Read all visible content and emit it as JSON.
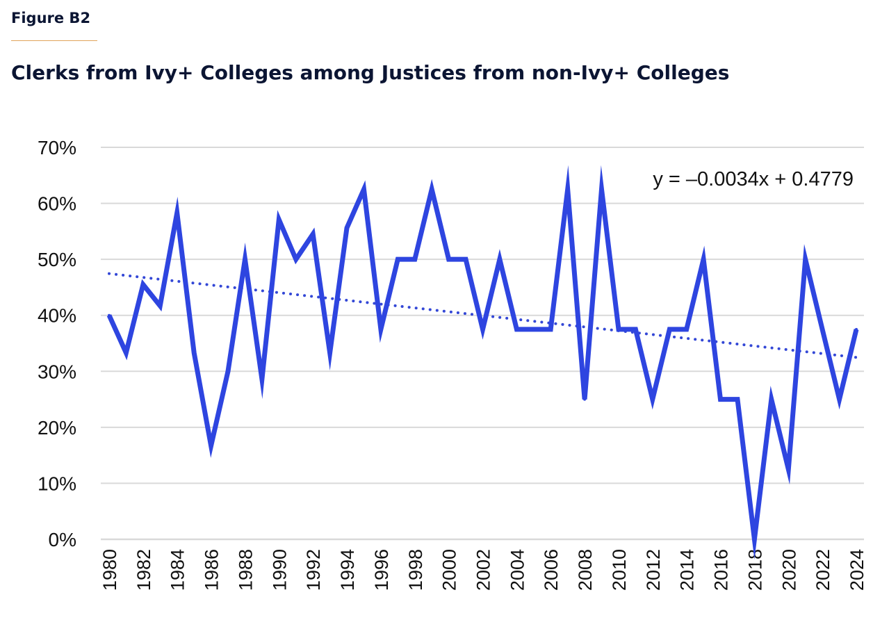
{
  "figure_label": "Figure B2",
  "colors": {
    "series": "#2e45e0",
    "trend": "#3347d6",
    "grid": "#d9d9d9",
    "axis": "#d9d9d9",
    "title": "#0b1533",
    "figure_rule": "#e0a45a"
  },
  "chart_data": {
    "type": "line",
    "title": "Clerks from Ivy+ Colleges among Justices from non-Ivy+ Colleges",
    "xlabel": "",
    "ylabel": "",
    "x": [
      1980,
      1981,
      1982,
      1983,
      1984,
      1985,
      1986,
      1987,
      1988,
      1989,
      1990,
      1991,
      1992,
      1993,
      1994,
      1995,
      1996,
      1997,
      1998,
      1999,
      2000,
      2001,
      2002,
      2003,
      2004,
      2005,
      2006,
      2007,
      2008,
      2009,
      2010,
      2011,
      2012,
      2013,
      2014,
      2015,
      2016,
      2017,
      2018,
      2019,
      2020,
      2021,
      2022,
      2023,
      2024
    ],
    "series": [
      {
        "values": [
          0.4,
          0.333,
          0.455,
          0.417,
          0.583,
          0.333,
          0.167,
          0.3,
          0.5,
          0.286,
          0.571,
          0.5,
          0.545,
          0.333,
          0.556,
          0.625,
          0.375,
          0.5,
          0.5,
          0.625,
          0.5,
          0.5,
          0.375,
          0.5,
          0.375,
          0.375,
          0.375,
          0.625,
          0.25,
          0.625,
          0.375,
          0.375,
          0.25,
          0.375,
          0.375,
          0.5,
          0.25,
          0.25,
          0.0,
          0.25,
          0.125,
          0.5,
          0.375,
          0.25,
          0.375
        ]
      }
    ],
    "trendline": {
      "style": "dotted",
      "equation": "y = –0.0034x + 0.4779",
      "slope": -0.0034,
      "intercept": 0.4779
    },
    "ylim": [
      0,
      0.7
    ],
    "y_ticks": [
      "0%",
      "10%",
      "20%",
      "30%",
      "40%",
      "50%",
      "60%",
      "70%"
    ],
    "x_ticks": [
      "1980",
      "1982",
      "1984",
      "1986",
      "1988",
      "1990",
      "1992",
      "1994",
      "1996",
      "1998",
      "2000",
      "2002",
      "2004",
      "2006",
      "2008",
      "2010",
      "2012",
      "2014",
      "2016",
      "2018",
      "2020",
      "2022",
      "2024"
    ],
    "grid": true,
    "legend": "none"
  }
}
